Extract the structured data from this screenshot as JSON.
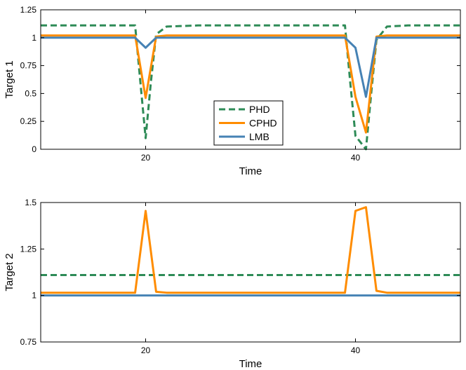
{
  "chart_data": [
    {
      "type": "line",
      "title": "",
      "xlabel": "Time",
      "ylabel": "Target 1",
      "xlim": [
        10,
        50
      ],
      "ylim": [
        0,
        1.25
      ],
      "xticks": [
        20,
        40
      ],
      "xtick_labels": [
        "20",
        "40"
      ],
      "yticks": [
        0,
        0.25,
        0.5,
        0.75,
        1,
        1.25
      ],
      "ytick_labels": [
        "0",
        "0.25",
        "0.5",
        "0.75",
        "1",
        "1.25"
      ],
      "grid": false,
      "legend": {
        "position": "center",
        "entries": [
          "PHD",
          "CPHD",
          "LMB"
        ]
      },
      "series": [
        {
          "name": "PHD",
          "color": "#2e8b57",
          "style": "dashed",
          "x": [
            10,
            19,
            19.5,
            20,
            20.5,
            21,
            22,
            25,
            39,
            39.5,
            40,
            41,
            41.5,
            42,
            43,
            45,
            50
          ],
          "y": [
            1.11,
            1.11,
            0.6,
            0.1,
            0.6,
            1.03,
            1.1,
            1.11,
            1.11,
            0.6,
            0.12,
            0.0,
            0.5,
            0.98,
            1.1,
            1.11,
            1.11
          ]
        },
        {
          "name": "CPHD",
          "color": "#ff8c00",
          "style": "solid",
          "x": [
            10,
            19,
            20,
            21,
            22,
            39,
            40,
            41,
            42,
            43,
            50
          ],
          "y": [
            1.02,
            1.02,
            0.46,
            1.01,
            1.02,
            1.02,
            0.47,
            0.15,
            1.01,
            1.02,
            1.02
          ]
        },
        {
          "name": "LMB",
          "color": "#4682b4",
          "style": "solid",
          "x": [
            10,
            19,
            20,
            21,
            22,
            39,
            40,
            41,
            42,
            43,
            50
          ],
          "y": [
            1.0,
            1.0,
            0.91,
            1.0,
            1.0,
            1.0,
            0.91,
            0.47,
            1.0,
            1.0,
            1.0
          ]
        }
      ]
    },
    {
      "type": "line",
      "title": "",
      "xlabel": "Time",
      "ylabel": "Target 2",
      "xlim": [
        10,
        50
      ],
      "ylim": [
        0.75,
        1.5
      ],
      "xticks": [
        20,
        40
      ],
      "xtick_labels": [
        "20",
        "40"
      ],
      "yticks": [
        0.75,
        1,
        1.25,
        1.5
      ],
      "ytick_labels": [
        "0.75",
        "1",
        "1.25",
        "1.5"
      ],
      "grid": false,
      "series": [
        {
          "name": "PHD",
          "color": "#2e8b57",
          "style": "dashed",
          "x": [
            10,
            50
          ],
          "y": [
            1.11,
            1.11
          ]
        },
        {
          "name": "CPHD",
          "color": "#ff8c00",
          "style": "solid",
          "x": [
            10,
            19,
            20,
            21,
            22,
            23,
            39,
            40,
            41,
            42,
            43,
            50
          ],
          "y": [
            1.015,
            1.015,
            1.455,
            1.02,
            1.015,
            1.015,
            1.015,
            1.455,
            1.475,
            1.025,
            1.015,
            1.015
          ]
        },
        {
          "name": "LMB",
          "color": "#4682b4",
          "style": "solid",
          "x": [
            10,
            50
          ],
          "y": [
            1.0,
            1.0
          ]
        }
      ]
    }
  ]
}
